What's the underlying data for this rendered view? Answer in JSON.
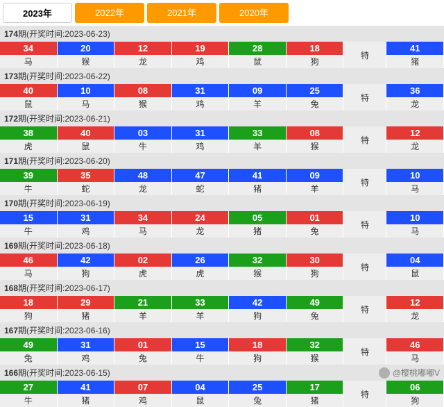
{
  "years": [
    {
      "label": "2023年",
      "active": true
    },
    {
      "label": "2022年",
      "active": false
    },
    {
      "label": "2021年",
      "active": false
    },
    {
      "label": "2020年",
      "active": false
    }
  ],
  "colors": {
    "red": "#e53935",
    "blue": "#1e50ff",
    "green": "#1ca01c"
  },
  "te_label": "特",
  "header_prefix_a": "期(开奖时间:",
  "header_suffix": ")",
  "watermark": "@樱桃嘟嘟V",
  "periods": [
    {
      "period": "174",
      "date": "2023-06-23",
      "main": [
        {
          "n": "34",
          "z": "马",
          "c": "red"
        },
        {
          "n": "20",
          "z": "猴",
          "c": "blue"
        },
        {
          "n": "12",
          "z": "龙",
          "c": "red"
        },
        {
          "n": "19",
          "z": "鸡",
          "c": "red"
        },
        {
          "n": "28",
          "z": "鼠",
          "c": "green"
        },
        {
          "n": "18",
          "z": "狗",
          "c": "red"
        }
      ],
      "special": {
        "n": "41",
        "z": "猪",
        "c": "blue"
      }
    },
    {
      "period": "173",
      "date": "2023-06-22",
      "main": [
        {
          "n": "40",
          "z": "鼠",
          "c": "red"
        },
        {
          "n": "10",
          "z": "马",
          "c": "blue"
        },
        {
          "n": "08",
          "z": "猴",
          "c": "red"
        },
        {
          "n": "31",
          "z": "鸡",
          "c": "blue"
        },
        {
          "n": "09",
          "z": "羊",
          "c": "blue"
        },
        {
          "n": "25",
          "z": "兔",
          "c": "blue"
        }
      ],
      "special": {
        "n": "36",
        "z": "龙",
        "c": "blue"
      }
    },
    {
      "period": "172",
      "date": "2023-06-21",
      "main": [
        {
          "n": "38",
          "z": "虎",
          "c": "green"
        },
        {
          "n": "40",
          "z": "鼠",
          "c": "red"
        },
        {
          "n": "03",
          "z": "牛",
          "c": "blue"
        },
        {
          "n": "31",
          "z": "鸡",
          "c": "blue"
        },
        {
          "n": "33",
          "z": "羊",
          "c": "green"
        },
        {
          "n": "08",
          "z": "猴",
          "c": "red"
        }
      ],
      "special": {
        "n": "12",
        "z": "龙",
        "c": "red"
      }
    },
    {
      "period": "171",
      "date": "2023-06-20",
      "main": [
        {
          "n": "39",
          "z": "牛",
          "c": "green"
        },
        {
          "n": "35",
          "z": "蛇",
          "c": "red"
        },
        {
          "n": "48",
          "z": "龙",
          "c": "blue"
        },
        {
          "n": "47",
          "z": "蛇",
          "c": "blue"
        },
        {
          "n": "41",
          "z": "猪",
          "c": "blue"
        },
        {
          "n": "09",
          "z": "羊",
          "c": "blue"
        }
      ],
      "special": {
        "n": "10",
        "z": "马",
        "c": "blue"
      }
    },
    {
      "period": "170",
      "date": "2023-06-19",
      "main": [
        {
          "n": "15",
          "z": "牛",
          "c": "blue"
        },
        {
          "n": "31",
          "z": "鸡",
          "c": "blue"
        },
        {
          "n": "34",
          "z": "马",
          "c": "red"
        },
        {
          "n": "24",
          "z": "龙",
          "c": "red"
        },
        {
          "n": "05",
          "z": "猪",
          "c": "green"
        },
        {
          "n": "01",
          "z": "兔",
          "c": "red"
        }
      ],
      "special": {
        "n": "10",
        "z": "马",
        "c": "blue"
      }
    },
    {
      "period": "169",
      "date": "2023-06-18",
      "main": [
        {
          "n": "46",
          "z": "马",
          "c": "red"
        },
        {
          "n": "42",
          "z": "狗",
          "c": "blue"
        },
        {
          "n": "02",
          "z": "虎",
          "c": "red"
        },
        {
          "n": "26",
          "z": "虎",
          "c": "blue"
        },
        {
          "n": "32",
          "z": "猴",
          "c": "green"
        },
        {
          "n": "30",
          "z": "狗",
          "c": "red"
        }
      ],
      "special": {
        "n": "04",
        "z": "鼠",
        "c": "blue"
      }
    },
    {
      "period": "168",
      "date": "2023-06-17",
      "main": [
        {
          "n": "18",
          "z": "狗",
          "c": "red"
        },
        {
          "n": "29",
          "z": "猪",
          "c": "red"
        },
        {
          "n": "21",
          "z": "羊",
          "c": "green"
        },
        {
          "n": "33",
          "z": "羊",
          "c": "green"
        },
        {
          "n": "42",
          "z": "狗",
          "c": "blue"
        },
        {
          "n": "49",
          "z": "兔",
          "c": "green"
        }
      ],
      "special": {
        "n": "12",
        "z": "龙",
        "c": "red"
      }
    },
    {
      "period": "167",
      "date": "2023-06-16",
      "main": [
        {
          "n": "49",
          "z": "兔",
          "c": "green"
        },
        {
          "n": "31",
          "z": "鸡",
          "c": "blue"
        },
        {
          "n": "01",
          "z": "兔",
          "c": "red"
        },
        {
          "n": "15",
          "z": "牛",
          "c": "blue"
        },
        {
          "n": "18",
          "z": "狗",
          "c": "red"
        },
        {
          "n": "32",
          "z": "猴",
          "c": "green"
        }
      ],
      "special": {
        "n": "46",
        "z": "马",
        "c": "red"
      }
    },
    {
      "period": "166",
      "date": "2023-06-15",
      "main": [
        {
          "n": "27",
          "z": "牛",
          "c": "green"
        },
        {
          "n": "41",
          "z": "猪",
          "c": "blue"
        },
        {
          "n": "07",
          "z": "鸡",
          "c": "red"
        },
        {
          "n": "04",
          "z": "鼠",
          "c": "blue"
        },
        {
          "n": "25",
          "z": "兔",
          "c": "blue"
        },
        {
          "n": "17",
          "z": "猪",
          "c": "green"
        }
      ],
      "special": {
        "n": "06",
        "z": "狗",
        "c": "green"
      }
    }
  ]
}
